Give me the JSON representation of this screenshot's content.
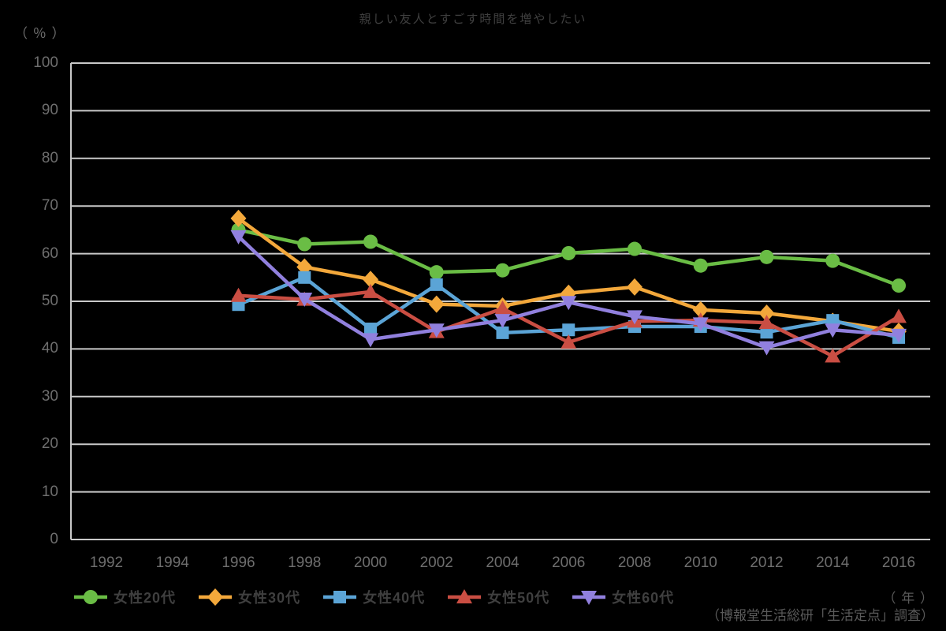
{
  "chart_data": {
    "type": "line",
    "title": "親しい友人とすごす時間を増やしたい",
    "y_unit_label": "（ ％ ）",
    "x_unit_label": "（ 年 ）",
    "source": "（博報堂生活総研「生活定点」調査）",
    "x_ticks": [
      1992,
      1994,
      1996,
      1998,
      2000,
      2002,
      2004,
      2006,
      2008,
      2010,
      2012,
      2014,
      2016
    ],
    "y_ticks": [
      0,
      10,
      20,
      30,
      40,
      50,
      60,
      70,
      80,
      90,
      100
    ],
    "ylim": [
      0,
      100
    ],
    "xlim": [
      1991,
      2017
    ],
    "grid": "horizontal",
    "legend_position": "bottom",
    "background_color": "#000000",
    "gridline_color": "#c9c9c9",
    "x": [
      1996,
      1998,
      2000,
      2002,
      2004,
      2006,
      2008,
      2010,
      2012,
      2014,
      2016
    ],
    "series": [
      {
        "name": "女性20代",
        "color": "#6abd45",
        "marker": "circle",
        "values": [
          65.0,
          62.0,
          62.5,
          56.1,
          56.5,
          60.1,
          61.0,
          57.5,
          59.3,
          58.5,
          53.3
        ]
      },
      {
        "name": "女性30代",
        "color": "#f3a83b",
        "marker": "diamond",
        "values": [
          67.4,
          57.2,
          54.6,
          49.4,
          49.0,
          51.7,
          53.0,
          48.2,
          47.5,
          45.8,
          43.7
        ]
      },
      {
        "name": "女性40代",
        "color": "#5ba4d6",
        "marker": "square",
        "values": [
          49.3,
          55.0,
          44.2,
          53.5,
          43.4,
          44.0,
          44.7,
          44.7,
          43.5,
          46.0,
          42.4
        ]
      },
      {
        "name": "女性50代",
        "color": "#ca4e43",
        "marker": "triangle-up",
        "values": [
          51.2,
          50.4,
          52.0,
          43.6,
          48.5,
          41.4,
          45.8,
          46.0,
          45.5,
          38.5,
          46.8
        ]
      },
      {
        "name": "女性60代",
        "color": "#9180de",
        "marker": "triangle-down",
        "values": [
          63.6,
          50.5,
          42.0,
          44.0,
          46.0,
          49.8,
          46.8,
          45.3,
          40.3,
          44.0,
          42.9
        ]
      }
    ]
  }
}
